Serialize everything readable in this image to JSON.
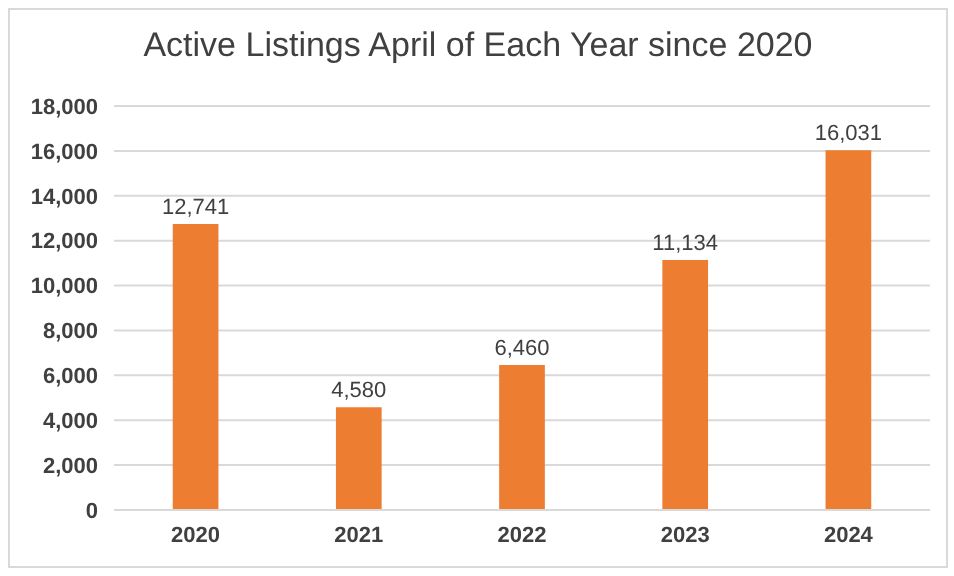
{
  "chart_data": {
    "type": "bar",
    "title": "Active Listings April of Each Year since 2020",
    "categories": [
      "2020",
      "2021",
      "2022",
      "2023",
      "2024"
    ],
    "values": [
      12741,
      4580,
      6460,
      11134,
      16031
    ],
    "color": "#ed7d31",
    "ylim": [
      0,
      18000
    ],
    "yticks": [
      0,
      {
        "value": 2000,
        "label": "2,000"
      },
      {
        "value": 4000,
        "label": "4,000"
      },
      {
        "value": 6000,
        "label": "6,000"
      },
      {
        "value": 8000,
        "label": "8,000"
      },
      {
        "value": 10000,
        "label": "10,000"
      },
      {
        "value": 12000,
        "label": "12,000"
      },
      {
        "value": 14000,
        "label": "14,000"
      },
      {
        "value": 16000,
        "label": "16,000"
      },
      {
        "value": 18000,
        "label": "18,000"
      }
    ],
    "grid": "y",
    "value_labels": [
      "12,741",
      "4,580",
      "6,460",
      "11,134",
      "16,031"
    ]
  }
}
